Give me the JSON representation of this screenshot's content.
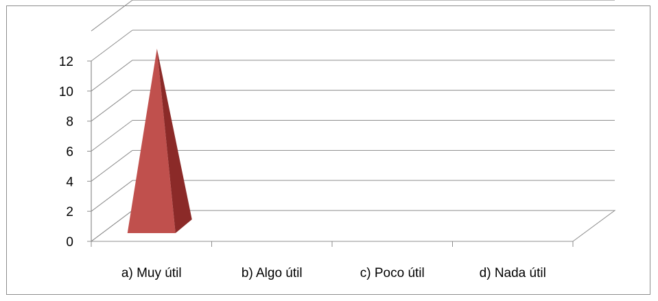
{
  "chart_data": {
    "type": "bar",
    "bar_shape": "pyramid",
    "three_d": true,
    "categories": [
      "a)  Muy útil",
      "b)  Algo útil",
      "c)  Poco útil",
      "d)  Nada útil"
    ],
    "values": [
      12,
      0,
      0,
      0
    ],
    "ylim": [
      0,
      12
    ],
    "yticks": [
      "0",
      "2",
      "4",
      "6",
      "8",
      "10",
      "12"
    ],
    "grid": true,
    "legend": "none",
    "colors": {
      "bar_front": "#c0504d",
      "bar_side": "#8b2a28",
      "grid": "#8c8c8c"
    }
  }
}
